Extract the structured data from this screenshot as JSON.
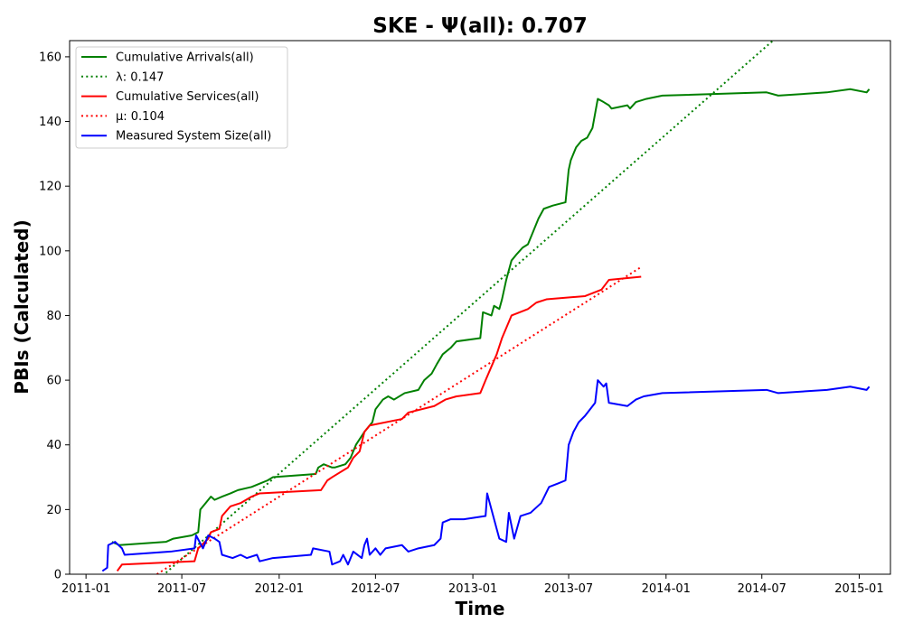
{
  "chart_data": {
    "type": "line",
    "title": "SKE -  Ψ(all): 0.707",
    "xlabel": "Time",
    "ylabel": "PBIs (Calculated)",
    "xlim": [
      "2010-12-01",
      "2015-03-01"
    ],
    "ylim": [
      0,
      165
    ],
    "x_ticks": [
      "2011-01-01",
      "2011-07-01",
      "2012-01-01",
      "2012-07-01",
      "2013-01-01",
      "2013-07-01",
      "2014-01-01",
      "2014-07-01",
      "2015-01-01"
    ],
    "x_tick_labels": [
      "2011-01",
      "2011-07",
      "2012-01",
      "2012-07",
      "2013-01",
      "2013-07",
      "2014-01",
      "2014-07",
      "2015-01"
    ],
    "y_ticks": [
      0,
      20,
      40,
      60,
      80,
      100,
      120,
      140,
      160
    ],
    "y_tick_labels": [
      "0",
      "20",
      "40",
      "60",
      "80",
      "100",
      "120",
      "140",
      "160"
    ],
    "grid": false,
    "legend_position": "top-left",
    "series": [
      {
        "name": "Cumulative Arrivals(all)",
        "style": "solid",
        "color": "#008000",
        "points": [
          [
            "2011-02-19",
            10
          ],
          [
            "2011-03-05",
            9
          ],
          [
            "2011-06-01",
            10
          ],
          [
            "2011-06-15",
            11
          ],
          [
            "2011-07-20",
            12
          ],
          [
            "2011-08-01",
            13
          ],
          [
            "2011-08-05",
            20
          ],
          [
            "2011-08-15",
            22
          ],
          [
            "2011-08-25",
            24
          ],
          [
            "2011-09-01",
            23
          ],
          [
            "2011-09-15",
            24
          ],
          [
            "2011-10-01",
            25
          ],
          [
            "2011-10-15",
            26
          ],
          [
            "2011-11-10",
            27
          ],
          [
            "2011-11-25",
            28
          ],
          [
            "2011-12-10",
            29
          ],
          [
            "2011-12-20",
            30
          ],
          [
            "2012-03-10",
            31
          ],
          [
            "2012-03-15",
            33
          ],
          [
            "2012-03-25",
            34
          ],
          [
            "2012-04-10",
            33
          ],
          [
            "2012-04-15",
            33
          ],
          [
            "2012-05-05",
            34
          ],
          [
            "2012-05-15",
            36
          ],
          [
            "2012-05-25",
            40
          ],
          [
            "2012-06-10",
            44
          ],
          [
            "2012-06-25",
            47
          ],
          [
            "2012-07-01",
            51
          ],
          [
            "2012-07-15",
            54
          ],
          [
            "2012-07-25",
            55
          ],
          [
            "2012-08-05",
            54
          ],
          [
            "2012-08-25",
            56
          ],
          [
            "2012-09-20",
            57
          ],
          [
            "2012-10-01",
            60
          ],
          [
            "2012-10-15",
            62
          ],
          [
            "2012-10-25",
            65
          ],
          [
            "2012-11-05",
            68
          ],
          [
            "2012-11-20",
            70
          ],
          [
            "2012-12-01",
            72
          ],
          [
            "2013-01-15",
            73
          ],
          [
            "2013-01-20",
            81
          ],
          [
            "2013-02-05",
            80
          ],
          [
            "2013-02-10",
            83
          ],
          [
            "2013-02-20",
            82
          ],
          [
            "2013-02-25",
            85
          ],
          [
            "2013-03-05",
            91
          ],
          [
            "2013-03-15",
            97
          ],
          [
            "2013-03-25",
            99
          ],
          [
            "2013-04-05",
            101
          ],
          [
            "2013-04-15",
            102
          ],
          [
            "2013-04-25",
            106
          ],
          [
            "2013-05-05",
            110
          ],
          [
            "2013-05-15",
            113
          ],
          [
            "2013-06-01",
            114
          ],
          [
            "2013-06-25",
            115
          ],
          [
            "2013-07-01",
            125
          ],
          [
            "2013-07-05",
            128
          ],
          [
            "2013-07-15",
            132
          ],
          [
            "2013-07-25",
            134
          ],
          [
            "2013-08-05",
            135
          ],
          [
            "2013-08-15",
            138
          ],
          [
            "2013-08-25",
            147
          ],
          [
            "2013-09-05",
            146
          ],
          [
            "2013-09-15",
            145
          ],
          [
            "2013-09-20",
            144
          ],
          [
            "2013-10-20",
            145
          ],
          [
            "2013-10-25",
            144
          ],
          [
            "2013-11-05",
            146
          ],
          [
            "2013-11-25",
            147
          ],
          [
            "2013-12-25",
            148
          ],
          [
            "2014-07-10",
            149
          ],
          [
            "2014-08-01",
            148
          ],
          [
            "2014-11-01",
            149
          ],
          [
            "2014-12-15",
            150
          ],
          [
            "2015-01-15",
            149
          ],
          [
            "2015-01-20",
            150
          ]
        ]
      },
      {
        "name": "λ: 0.147",
        "style": "dotted",
        "color": "#008000",
        "points": [
          [
            "2011-02-19",
            -14.2
          ],
          [
            "2014-07-22",
            165
          ]
        ]
      },
      {
        "name": "Cumulative Services(all)",
        "style": "solid",
        "color": "#ff0000",
        "points": [
          [
            "2011-03-01",
            1
          ],
          [
            "2011-03-10",
            3
          ],
          [
            "2011-07-25",
            4
          ],
          [
            "2011-08-01",
            8
          ],
          [
            "2011-08-20",
            11
          ],
          [
            "2011-08-25",
            13
          ],
          [
            "2011-09-10",
            14
          ],
          [
            "2011-09-15",
            18
          ],
          [
            "2011-10-01",
            21
          ],
          [
            "2011-10-20",
            22
          ],
          [
            "2011-11-10",
            24
          ],
          [
            "2011-11-25",
            25
          ],
          [
            "2012-03-20",
            26
          ],
          [
            "2012-04-01",
            29
          ],
          [
            "2012-04-10",
            30
          ],
          [
            "2012-05-10",
            33
          ],
          [
            "2012-05-20",
            36
          ],
          [
            "2012-06-01",
            38
          ],
          [
            "2012-06-10",
            44
          ],
          [
            "2012-06-20",
            46
          ],
          [
            "2012-08-20",
            48
          ],
          [
            "2012-09-01",
            50
          ],
          [
            "2012-10-20",
            52
          ],
          [
            "2012-11-10",
            54
          ],
          [
            "2012-12-01",
            55
          ],
          [
            "2013-01-15",
            56
          ],
          [
            "2013-01-25",
            60
          ],
          [
            "2013-02-15",
            68
          ],
          [
            "2013-02-25",
            73
          ],
          [
            "2013-03-15",
            80
          ],
          [
            "2013-04-15",
            82
          ],
          [
            "2013-05-01",
            84
          ],
          [
            "2013-05-20",
            85
          ],
          [
            "2013-08-01",
            86
          ],
          [
            "2013-09-01",
            88
          ],
          [
            "2013-09-15",
            91
          ],
          [
            "2013-11-15",
            92
          ]
        ]
      },
      {
        "name": "μ: 0.104",
        "style": "dotted",
        "color": "#ff0000",
        "points": [
          [
            "2011-05-15",
            0
          ],
          [
            "2013-11-15",
            95
          ]
        ]
      },
      {
        "name": "Measured System Size(all)",
        "style": "solid",
        "color": "#0000ff",
        "points": [
          [
            "2011-02-01",
            1
          ],
          [
            "2011-02-10",
            2
          ],
          [
            "2011-02-12",
            9
          ],
          [
            "2011-02-25",
            10
          ],
          [
            "2011-03-10",
            8
          ],
          [
            "2011-03-15",
            6
          ],
          [
            "2011-06-10",
            7
          ],
          [
            "2011-07-25",
            8
          ],
          [
            "2011-07-28",
            12
          ],
          [
            "2011-08-10",
            8
          ],
          [
            "2011-08-20",
            12
          ],
          [
            "2011-09-01",
            11
          ],
          [
            "2011-09-10",
            10
          ],
          [
            "2011-09-15",
            6
          ],
          [
            "2011-10-05",
            5
          ],
          [
            "2011-10-20",
            6
          ],
          [
            "2011-11-01",
            5
          ],
          [
            "2011-11-20",
            6
          ],
          [
            "2011-11-25",
            4
          ],
          [
            "2011-12-20",
            5
          ],
          [
            "2012-03-01",
            6
          ],
          [
            "2012-03-05",
            8
          ],
          [
            "2012-04-05",
            7
          ],
          [
            "2012-04-10",
            3
          ],
          [
            "2012-04-25",
            4
          ],
          [
            "2012-05-01",
            6
          ],
          [
            "2012-05-10",
            3
          ],
          [
            "2012-05-20",
            7
          ],
          [
            "2012-06-05",
            5
          ],
          [
            "2012-06-10",
            9
          ],
          [
            "2012-06-15",
            11
          ],
          [
            "2012-06-20",
            6
          ],
          [
            "2012-07-01",
            8
          ],
          [
            "2012-07-10",
            6
          ],
          [
            "2012-07-20",
            8
          ],
          [
            "2012-08-20",
            9
          ],
          [
            "2012-09-01",
            7
          ],
          [
            "2012-09-20",
            8
          ],
          [
            "2012-10-20",
            9
          ],
          [
            "2012-11-01",
            11
          ],
          [
            "2012-11-05",
            16
          ],
          [
            "2012-11-20",
            17
          ],
          [
            "2012-12-15",
            17
          ],
          [
            "2013-01-25",
            18
          ],
          [
            "2013-01-28",
            25
          ],
          [
            "2013-02-15",
            14
          ],
          [
            "2013-02-20",
            11
          ],
          [
            "2013-03-05",
            10
          ],
          [
            "2013-03-10",
            19
          ],
          [
            "2013-03-20",
            11
          ],
          [
            "2013-04-01",
            18
          ],
          [
            "2013-04-20",
            19
          ],
          [
            "2013-05-10",
            22
          ],
          [
            "2013-05-25",
            27
          ],
          [
            "2013-06-10",
            28
          ],
          [
            "2013-06-25",
            29
          ],
          [
            "2013-07-01",
            40
          ],
          [
            "2013-07-10",
            44
          ],
          [
            "2013-07-20",
            47
          ],
          [
            "2013-08-01",
            49
          ],
          [
            "2013-08-20",
            53
          ],
          [
            "2013-08-25",
            60
          ],
          [
            "2013-09-05",
            58
          ],
          [
            "2013-09-10",
            59
          ],
          [
            "2013-09-15",
            53
          ],
          [
            "2013-10-20",
            52
          ],
          [
            "2013-11-05",
            54
          ],
          [
            "2013-11-20",
            55
          ],
          [
            "2013-12-25",
            56
          ],
          [
            "2014-07-10",
            57
          ],
          [
            "2014-08-01",
            56
          ],
          [
            "2014-11-01",
            57
          ],
          [
            "2014-12-15",
            58
          ],
          [
            "2015-01-15",
            57
          ],
          [
            "2015-01-20",
            58
          ]
        ]
      }
    ]
  }
}
